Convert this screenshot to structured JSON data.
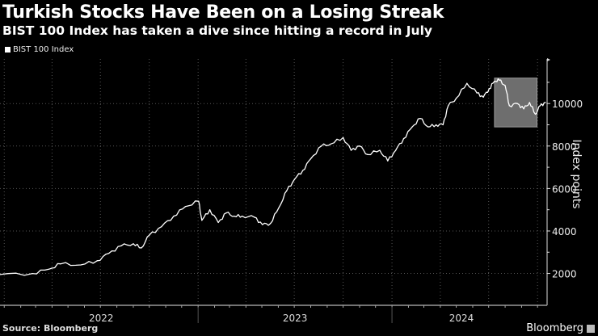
{
  "chart_data": {
    "type": "line",
    "title": "Turkish Stocks Have Been on a Losing Streak",
    "subtitle": "BIST 100 Index has taken a dive since hitting a record in July",
    "ylabel": "Index points",
    "xlabel": "",
    "ylim": [
      500,
      12100
    ],
    "xlim": [
      "2021-12-24",
      "2024-10-19"
    ],
    "yticks": [
      2000,
      4000,
      6000,
      8000,
      10000
    ],
    "xtick_labels": [
      "2022",
      "2023",
      "2024"
    ],
    "grid": true,
    "legend_position": "top-left",
    "highlight": {
      "x": [
        "2024-07-12",
        "2024-09-30"
      ],
      "y": [
        8900,
        11200
      ],
      "color": "#6e6e6e"
    },
    "series": [
      {
        "name": "BIST 100 Index",
        "color": "#ffffff",
        "points": [
          [
            "2021-12-24",
            1950
          ],
          [
            "2022-02-23",
            2000
          ],
          [
            "2022-03-26",
            2200
          ],
          [
            "2022-04-17",
            2450
          ],
          [
            "2022-05-25",
            2400
          ],
          [
            "2022-06-25",
            2600
          ],
          [
            "2022-07-17",
            2950
          ],
          [
            "2022-08-09",
            3300
          ],
          [
            "2022-09-01",
            3400
          ],
          [
            "2022-09-16",
            3200
          ],
          [
            "2022-10-01",
            3800
          ],
          [
            "2022-10-24",
            4200
          ],
          [
            "2022-11-16",
            4700
          ],
          [
            "2022-12-08",
            5150
          ],
          [
            "2023-01-02",
            5400
          ],
          [
            "2023-01-08",
            4500
          ],
          [
            "2023-01-23",
            5000
          ],
          [
            "2023-02-08",
            4400
          ],
          [
            "2023-02-23",
            4850
          ],
          [
            "2023-03-10",
            4700
          ],
          [
            "2023-03-25",
            4700
          ],
          [
            "2023-04-17",
            4650
          ],
          [
            "2023-05-02",
            4300
          ],
          [
            "2023-05-17",
            4350
          ],
          [
            "2023-06-02",
            5100
          ],
          [
            "2023-06-17",
            5900
          ],
          [
            "2023-07-02",
            6450
          ],
          [
            "2023-07-17",
            6850
          ],
          [
            "2023-08-01",
            7400
          ],
          [
            "2023-08-21",
            8000
          ],
          [
            "2023-09-08",
            8100
          ],
          [
            "2023-10-01",
            8400
          ],
          [
            "2023-10-16",
            7800
          ],
          [
            "2023-11-01",
            8000
          ],
          [
            "2023-11-16",
            7600
          ],
          [
            "2023-12-09",
            7800
          ],
          [
            "2023-12-24",
            7300
          ],
          [
            "2024-01-08",
            7800
          ],
          [
            "2024-01-23",
            8350
          ],
          [
            "2024-02-08",
            8900
          ],
          [
            "2024-02-23",
            9300
          ],
          [
            "2024-03-09",
            8900
          ],
          [
            "2024-03-24",
            9000
          ],
          [
            "2024-04-06",
            9000
          ],
          [
            "2024-04-16",
            9900
          ],
          [
            "2024-05-01",
            10250
          ],
          [
            "2024-05-21",
            10950
          ],
          [
            "2024-06-09",
            10500
          ],
          [
            "2024-06-21",
            10300
          ],
          [
            "2024-07-02",
            10700
          ],
          [
            "2024-07-12",
            11050
          ],
          [
            "2024-07-21",
            11100
          ],
          [
            "2024-08-01",
            10850
          ],
          [
            "2024-08-09",
            9900
          ],
          [
            "2024-08-24",
            10000
          ],
          [
            "2024-09-05",
            9750
          ],
          [
            "2024-09-16",
            10050
          ],
          [
            "2024-09-27",
            9500
          ],
          [
            "2024-10-06",
            9900
          ],
          [
            "2024-10-16",
            10050
          ]
        ]
      }
    ]
  },
  "footer": {
    "source": "Source: Bloomberg",
    "brand": "Bloomberg"
  }
}
